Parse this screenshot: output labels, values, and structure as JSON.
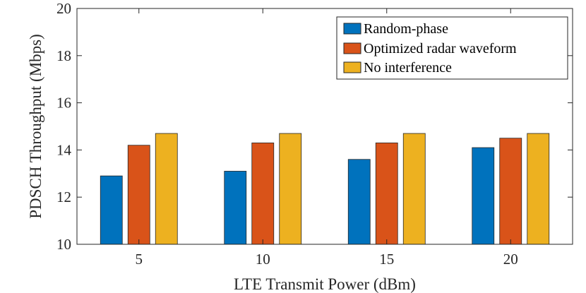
{
  "chart_data": {
    "type": "bar",
    "title": "",
    "xlabel": "LTE Transmit Power (dBm)",
    "ylabel": "PDSCH Throughput (Mbps)",
    "categories": [
      "5",
      "10",
      "15",
      "20"
    ],
    "ylim": [
      10,
      20
    ],
    "yticks": [
      "10",
      "12",
      "14",
      "16",
      "18",
      "20"
    ],
    "series": [
      {
        "name": "Random-phase",
        "color": "#0072BD",
        "values": [
          12.9,
          13.1,
          13.6,
          14.1
        ]
      },
      {
        "name": "Optimized radar waveform",
        "color": "#D95319",
        "values": [
          14.2,
          14.3,
          14.3,
          14.5
        ]
      },
      {
        "name": "No interference",
        "color": "#EDB120",
        "values": [
          14.7,
          14.7,
          14.7,
          14.7
        ]
      }
    ],
    "legend_position": "top-right",
    "grid": false
  }
}
